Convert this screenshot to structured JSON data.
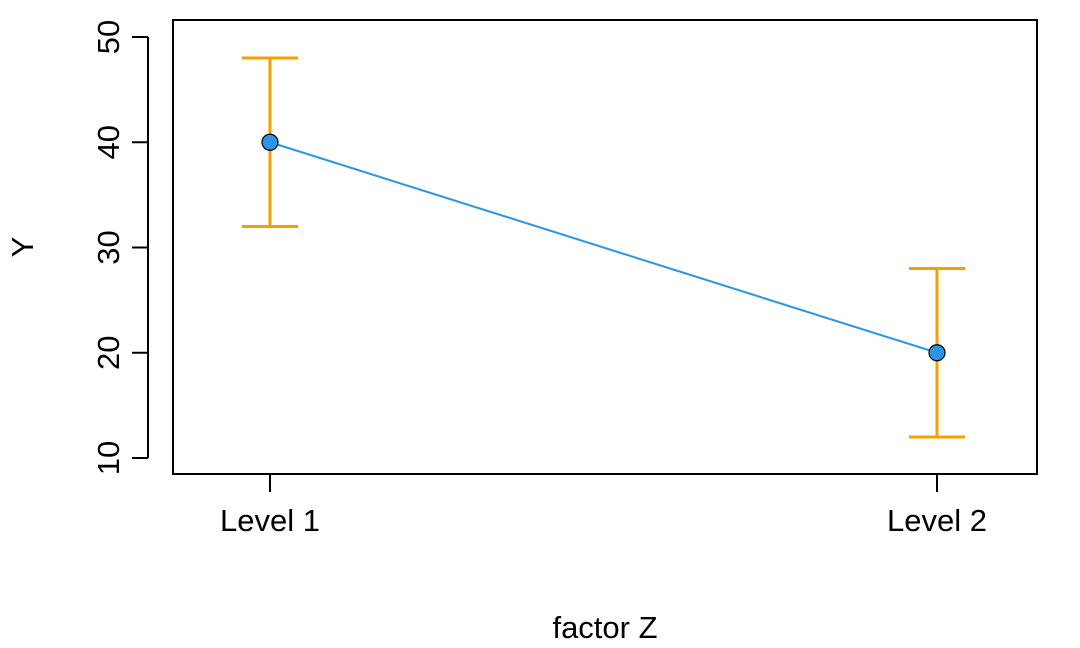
{
  "chart_data": {
    "type": "line",
    "title": "",
    "xlabel": "factor Z",
    "ylabel": "Y",
    "categories": [
      "Level 1",
      "Level 2"
    ],
    "series": [
      {
        "values": [
          40,
          20
        ],
        "error_low": [
          32,
          12
        ],
        "error_high": [
          48,
          28
        ]
      }
    ],
    "ylim": [
      8.5,
      52
    ],
    "y_ticks": [
      10,
      20,
      30,
      40,
      50
    ],
    "grid": false,
    "legend": "none",
    "colors": {
      "line": "#2a96e6",
      "point_fill": "#2a96e6",
      "point_stroke": "#000000",
      "error_bar": "#f5a000"
    }
  }
}
